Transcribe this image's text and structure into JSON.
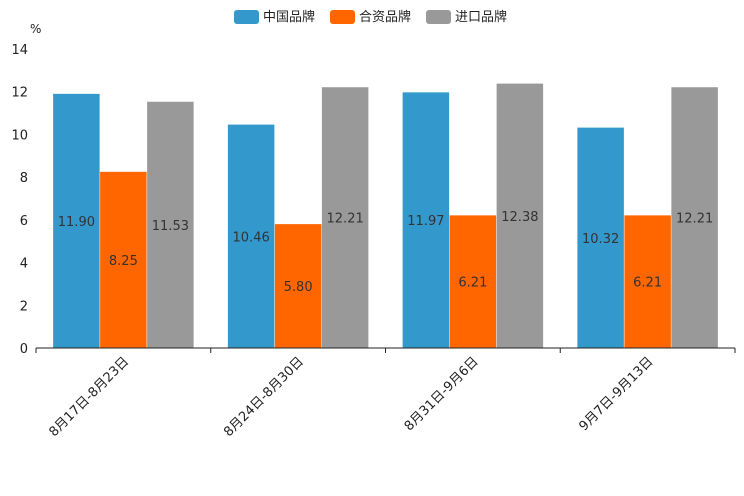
{
  "chart_data": {
    "type": "bar",
    "y_unit": "%",
    "ylim": [
      0,
      14
    ],
    "y_ticks": [
      "0",
      "2",
      "4",
      "6",
      "8",
      "10",
      "12",
      "14"
    ],
    "categories": [
      "8月17日-8月23日",
      "8月24日-8月30日",
      "8月31日-9月6日",
      "9月7日-9月13日"
    ],
    "series": [
      {
        "name": "中国品牌",
        "color": "#3399cc",
        "values": [
          11.9,
          10.46,
          11.97,
          10.32
        ],
        "labels": [
          "11.90",
          "10.46",
          "11.97",
          "10.32"
        ]
      },
      {
        "name": "合资品牌",
        "color": "#ff6600",
        "values": [
          8.25,
          5.8,
          6.21,
          6.21
        ],
        "labels": [
          "8.25",
          "5.80",
          "6.21",
          "6.21"
        ]
      },
      {
        "name": "进口品牌",
        "color": "#999999",
        "values": [
          11.53,
          12.21,
          12.38,
          12.21
        ],
        "labels": [
          "11.53",
          "12.21",
          "12.38",
          "12.21"
        ]
      }
    ],
    "legend_position": "top-center",
    "grid": false
  }
}
